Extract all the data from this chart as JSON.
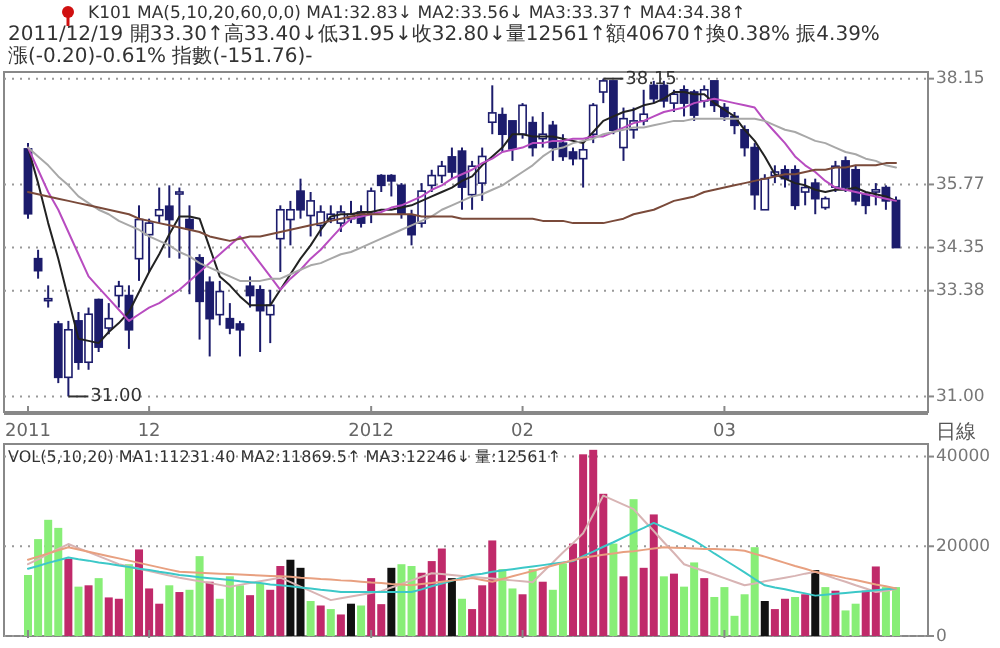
{
  "chart_data": [
    {
      "type": "candlestick",
      "title": "K101 MA(5,10,20,60,0,0) MA1:32.83↓ MA2:33.56↓ MA3:33.37↑ MA4:34.38↑",
      "subtitle": "2011/12/19 開33.30↑高33.40↓低31.95↓收32.80↓量12561↑額40670↑換0.38% 振4.39% 漲(-0.20)-0.61% 指數(-151.76)-",
      "annotations": [
        {
          "text": "38.15",
          "y": 38.15
        },
        "31.00",
        "日線"
      ],
      "categories": [
        "2011",
        null,
        null,
        null,
        null,
        null,
        null,
        null,
        null,
        null,
        null,
        null,
        "12",
        null,
        null,
        null,
        null,
        null,
        null,
        null,
        null,
        null,
        null,
        null,
        null,
        null,
        null,
        null,
        null,
        null,
        null,
        null,
        null,
        null,
        "2012",
        null,
        null,
        null,
        null,
        null,
        null,
        null,
        null,
        null,
        null,
        null,
        null,
        null,
        null,
        "02",
        null,
        null,
        null,
        null,
        null,
        null,
        null,
        null,
        null,
        null,
        null,
        null,
        null,
        null,
        null,
        null,
        null,
        null,
        null,
        "03",
        null,
        null,
        null,
        null,
        null,
        null,
        null,
        null,
        null,
        null,
        null,
        null,
        null,
        null,
        null,
        null,
        null
      ],
      "ylim": [
        30.65,
        38.3
      ],
      "yticks": [
        38.15,
        35.77,
        34.35,
        33.38,
        {
          "value": 31,
          "label": "31.00"
        }
      ],
      "grid": "y",
      "color": "#1c1c6c",
      "ohlc": [
        [
          36.57,
          36.7,
          35.0,
          35.11
        ],
        [
          34.1,
          34.3,
          33.65,
          33.83
        ],
        [
          33.2,
          33.5,
          33.0,
          33.2
        ],
        [
          32.63,
          32.7,
          31.3,
          31.43
        ],
        [
          31.43,
          32.7,
          31.0,
          32.5
        ],
        [
          32.7,
          32.9,
          31.6,
          31.77
        ],
        [
          31.77,
          33.0,
          31.6,
          32.85
        ],
        [
          33.18,
          33.2,
          32.0,
          32.11
        ],
        [
          32.54,
          33.1,
          32.4,
          32.75
        ],
        [
          33.27,
          33.6,
          33.0,
          33.48
        ],
        [
          33.27,
          33.5,
          32.07,
          32.5
        ],
        [
          34.1,
          35.3,
          33.6,
          34.98
        ],
        [
          34.64,
          35.0,
          33.8,
          34.9
        ],
        [
          35.07,
          35.7,
          34.9,
          35.2
        ],
        [
          35.28,
          35.75,
          34.12,
          34.98
        ],
        [
          35.6,
          35.7,
          34.1,
          35.6
        ],
        [
          34.98,
          35.3,
          33.3,
          34.77
        ],
        [
          34.12,
          34.2,
          32.28,
          33.14
        ],
        [
          33.57,
          33.7,
          31.9,
          32.75
        ],
        [
          32.84,
          33.6,
          32.6,
          33.36
        ],
        [
          32.75,
          33.1,
          32.4,
          32.54
        ],
        [
          32.63,
          32.7,
          31.9,
          32.5
        ],
        [
          33.48,
          33.7,
          33.0,
          33.27
        ],
        [
          33.4,
          33.5,
          32.0,
          32.93
        ],
        [
          32.84,
          33.4,
          32.2,
          33.05
        ],
        [
          34.55,
          35.3,
          33.8,
          35.2
        ],
        [
          34.98,
          35.4,
          34.4,
          35.2
        ],
        [
          35.62,
          35.9,
          35.0,
          35.2
        ],
        [
          35.07,
          35.6,
          34.6,
          35.4
        ],
        [
          34.85,
          35.3,
          34.6,
          35.15
        ],
        [
          35.0,
          35.3,
          34.9,
          35.1
        ],
        [
          34.9,
          35.3,
          34.7,
          35.15
        ],
        [
          35.0,
          35.4,
          34.9,
          35.1
        ],
        [
          35.15,
          35.3,
          34.8,
          34.9
        ],
        [
          35.12,
          35.7,
          34.9,
          35.62
        ],
        [
          35.97,
          36.0,
          35.6,
          35.75
        ],
        [
          35.97,
          36.0,
          35.5,
          35.85
        ],
        [
          35.75,
          35.8,
          35.0,
          35.12
        ],
        [
          35.07,
          35.2,
          34.4,
          34.64
        ],
        [
          34.9,
          35.8,
          34.8,
          35.62
        ],
        [
          35.75,
          36.1,
          35.6,
          35.97
        ],
        [
          35.97,
          36.3,
          35.8,
          36.18
        ],
        [
          36.39,
          36.6,
          35.9,
          36.05
        ],
        [
          36.52,
          36.6,
          35.2,
          35.71
        ],
        [
          35.54,
          36.3,
          35.2,
          36.18
        ],
        [
          35.8,
          36.6,
          35.4,
          36.4
        ],
        [
          37.17,
          38.0,
          36.9,
          37.38
        ],
        [
          37.34,
          37.5,
          36.5,
          36.9
        ],
        [
          37.2,
          37.2,
          36.3,
          36.57
        ],
        [
          36.9,
          37.6,
          36.8,
          37.55
        ],
        [
          37.16,
          37.3,
          36.4,
          36.6
        ],
        [
          36.8,
          37.4,
          36.6,
          36.9
        ],
        [
          37.1,
          37.2,
          36.3,
          36.6
        ],
        [
          36.7,
          36.9,
          36.3,
          36.4
        ],
        [
          36.5,
          36.6,
          36.2,
          36.35
        ],
        [
          36.35,
          36.7,
          35.7,
          36.55
        ],
        [
          36.9,
          37.6,
          36.7,
          37.55
        ],
        [
          37.85,
          38.15,
          37.6,
          38.1
        ],
        [
          38.1,
          38.1,
          36.9,
          36.99
        ],
        [
          36.6,
          37.5,
          36.3,
          37.25
        ],
        [
          37.0,
          37.5,
          36.8,
          37.2
        ],
        [
          37.2,
          37.9,
          37.1,
          37.35
        ],
        [
          38.0,
          38.1,
          37.6,
          37.7
        ],
        [
          38.0,
          38.1,
          37.5,
          37.65
        ],
        [
          37.6,
          37.9,
          37.4,
          37.8
        ],
        [
          37.9,
          38.0,
          37.3,
          37.6
        ],
        [
          37.85,
          37.9,
          37.2,
          37.33
        ],
        [
          37.65,
          38.0,
          37.5,
          37.9
        ],
        [
          38.1,
          38.1,
          37.4,
          37.55
        ],
        [
          37.5,
          37.6,
          37.2,
          37.3
        ],
        [
          37.3,
          37.4,
          36.9,
          37.1
        ],
        [
          37.0,
          37.1,
          36.4,
          36.6
        ],
        [
          36.6,
          36.7,
          35.2,
          35.54
        ],
        [
          35.2,
          36.0,
          35.2,
          35.9
        ],
        [
          35.97,
          36.2,
          35.8,
          36.05
        ],
        [
          36.1,
          36.2,
          35.7,
          35.9
        ],
        [
          36.1,
          36.2,
          35.2,
          35.3
        ],
        [
          35.6,
          35.9,
          35.3,
          35.7
        ],
        [
          35.8,
          35.9,
          35.1,
          35.45
        ],
        [
          35.25,
          35.5,
          35.2,
          35.45
        ],
        [
          35.71,
          36.3,
          35.6,
          36.18
        ],
        [
          36.3,
          36.4,
          35.6,
          35.71
        ],
        [
          36.1,
          36.2,
          35.3,
          35.4
        ],
        [
          35.55,
          35.6,
          35.1,
          35.3
        ],
        [
          35.6,
          35.8,
          35.3,
          35.65
        ],
        [
          35.7,
          35.75,
          35.2,
          35.4
        ],
        [
          35.41,
          35.5,
          34.35,
          34.35
        ]
      ],
      "series": [
        {
          "type": "line",
          "color": "#222222",
          "values": [
            36.6,
            35.8,
            34.9,
            34.1,
            33.2,
            32.3,
            32.25,
            32.2,
            32.45,
            32.65,
            32.9,
            33.35,
            33.8,
            34.2,
            34.65,
            35.05,
            35.05,
            35.0,
            34.35,
            33.7,
            33.5,
            33.25,
            33.05,
            33.05,
            33.05,
            33.4,
            33.75,
            34.1,
            34.4,
            34.75,
            35.05,
            35.1,
            35.1,
            35.15,
            35.15,
            35.2,
            35.2,
            35.25,
            35.3,
            35.4,
            35.5,
            35.6,
            35.7,
            35.85,
            35.95,
            36.2,
            36.4,
            36.6,
            36.9,
            36.9,
            36.85,
            36.85,
            36.85,
            36.8,
            36.75,
            36.7,
            36.95,
            37.2,
            37.3,
            37.4,
            37.45,
            37.55,
            37.6,
            37.7,
            37.85,
            37.85,
            37.8,
            37.8,
            37.6,
            37.45,
            37.3,
            37.0,
            36.75,
            36.4,
            36.0,
            35.9,
            35.8,
            35.75,
            35.65,
            35.6,
            35.65,
            35.65,
            35.7,
            35.6,
            35.55,
            35.5,
            35.4
          ]
        },
        {
          "type": "line",
          "color": "#b84cc0",
          "values": [
            36.6,
            36.1,
            35.6,
            35.2,
            34.7,
            34.2,
            33.7,
            33.45,
            33.2,
            32.95,
            32.7,
            32.85,
            33.0,
            33.1,
            33.25,
            33.4,
            33.6,
            33.8,
            34.0,
            34.2,
            34.4,
            34.6,
            34.3,
            34.0,
            33.7,
            33.4,
            33.65,
            33.85,
            34.1,
            34.3,
            34.55,
            34.8,
            35.0,
            35.05,
            35.1,
            35.15,
            35.25,
            35.3,
            35.4,
            35.5,
            35.65,
            35.75,
            35.9,
            36.0,
            36.1,
            36.25,
            36.35,
            36.5,
            36.55,
            36.6,
            36.7,
            36.7,
            36.75,
            36.75,
            36.8,
            36.8,
            36.85,
            36.85,
            36.95,
            37.05,
            37.15,
            37.2,
            37.3,
            37.4,
            37.45,
            37.5,
            37.6,
            37.65,
            37.7,
            37.65,
            37.6,
            37.55,
            37.5,
            37.2,
            36.95,
            36.7,
            36.4,
            36.2,
            36.05,
            35.85,
            35.7,
            35.65,
            35.6,
            35.55,
            35.5,
            35.45,
            35.4
          ]
        },
        {
          "type": "line",
          "color": "#a8a8a8",
          "values": [
            36.6,
            36.4,
            36.2,
            35.95,
            35.75,
            35.5,
            35.35,
            35.2,
            35.1,
            34.95,
            34.85,
            34.75,
            34.6,
            34.5,
            34.4,
            34.25,
            34.15,
            34.0,
            33.9,
            33.8,
            33.7,
            33.6,
            33.6,
            33.6,
            33.65,
            33.65,
            33.75,
            33.85,
            33.95,
            34.0,
            34.1,
            34.2,
            34.25,
            34.35,
            34.45,
            34.55,
            34.65,
            34.75,
            34.85,
            34.95,
            35.05,
            35.2,
            35.3,
            35.4,
            35.5,
            35.55,
            35.65,
            35.75,
            35.9,
            36.05,
            36.2,
            36.4,
            36.55,
            36.6,
            36.7,
            36.75,
            36.8,
            36.9,
            36.95,
            37.0,
            37.05,
            37.05,
            37.1,
            37.15,
            37.2,
            37.2,
            37.25,
            37.25,
            37.25,
            37.25,
            37.25,
            37.25,
            37.25,
            37.2,
            37.1,
            37.0,
            36.95,
            36.85,
            36.75,
            36.7,
            36.6,
            36.5,
            36.45,
            36.35,
            36.3,
            36.2,
            36.15
          ]
        },
        {
          "type": "line",
          "color": "#7a4a3a",
          "values": [
            35.6,
            35.55,
            35.5,
            35.45,
            35.4,
            35.35,
            35.3,
            35.25,
            35.2,
            35.15,
            35.1,
            35.0,
            34.95,
            34.9,
            34.85,
            34.8,
            34.75,
            34.7,
            34.6,
            34.55,
            34.5,
            34.55,
            34.6,
            34.6,
            34.65,
            34.7,
            34.75,
            34.8,
            34.85,
            34.9,
            34.95,
            35.0,
            35.05,
            35.1,
            35.1,
            35.1,
            35.1,
            35.1,
            35.1,
            35.05,
            35.05,
            35.05,
            35.05,
            35.0,
            35.0,
            35.0,
            35.0,
            35.0,
            35.0,
            35.0,
            35.0,
            34.95,
            34.95,
            34.95,
            34.9,
            34.9,
            34.9,
            34.9,
            34.95,
            35.0,
            35.1,
            35.15,
            35.2,
            35.3,
            35.4,
            35.45,
            35.5,
            35.6,
            35.65,
            35.7,
            35.75,
            35.8,
            35.85,
            35.9,
            35.95,
            36.0,
            36.0,
            36.05,
            36.1,
            36.1,
            36.15,
            36.15,
            36.2,
            36.2,
            36.2,
            36.25,
            36.25
          ]
        }
      ]
    },
    {
      "type": "bar",
      "title": "VOL(5,10,20) MA1:11231.40 MA2:11869.5↑ MA3:12246↓ 量:12561↑",
      "tick_labels": "y",
      "categories": [
        "2011",
        null,
        null,
        null,
        null,
        null,
        null,
        null,
        null,
        null,
        null,
        null,
        "12",
        null,
        null,
        null,
        null,
        null,
        null,
        null,
        null,
        null,
        null,
        null,
        null,
        null,
        null,
        null,
        null,
        null,
        null,
        null,
        null,
        null,
        "2012",
        null,
        null,
        null,
        null,
        null,
        null,
        null,
        null,
        null,
        null,
        null,
        null,
        null,
        null,
        "02",
        null,
        null,
        null,
        null,
        null,
        null,
        null,
        null,
        null,
        null,
        null,
        null,
        null,
        null,
        null,
        null,
        null,
        null,
        null,
        "03",
        null,
        null,
        null,
        null,
        null,
        null,
        null,
        null,
        null,
        null,
        null,
        null,
        null,
        null,
        null,
        null,
        null
      ],
      "ylim": [
        0,
        42800
      ],
      "yticks": [
        0,
        20000,
        40000
      ],
      "grid": "y",
      "series": [
        {
          "type": "bar",
          "values": [
            13600,
            21600,
            25900,
            24100,
            17200,
            11000,
            11300,
            12900,
            8600,
            8300,
            16000,
            19300,
            10600,
            7200,
            11300,
            9800,
            10300,
            17800,
            12100,
            8300,
            13300,
            11300,
            9100,
            11800,
            10300,
            15600,
            17000,
            15200,
            7800,
            6800,
            6000,
            4800,
            7200,
            6800,
            12900,
            7100,
            15200,
            16000,
            15600,
            14100,
            16700,
            19500,
            12900,
            8300,
            6000,
            11300,
            21300,
            14900,
            10600,
            9300,
            14900,
            12100,
            10300,
            16200,
            20600,
            40500,
            41500,
            31700,
            20600,
            13300,
            30500,
            15200,
            27100,
            13300,
            13900,
            11000,
            16400,
            12900,
            8700,
            10900,
            4500,
            9300,
            19800,
            7800,
            6000,
            8300,
            8700,
            9300,
            14700,
            10900,
            10100,
            5700,
            7200,
            10100,
            15500,
            10900,
            10900
          ],
          "colors": [
            "#88ee77",
            "#88ee77",
            "#88ee77",
            "#88ee77",
            "#c02a6a",
            "#88ee77",
            "#c02a6a",
            "#88ee77",
            "#c02a6a",
            "#c02a6a",
            "#88ee77",
            "#c02a6a",
            "#c02a6a",
            "#c02a6a",
            "#88ee77",
            "#c02a6a",
            "#88ee77",
            "#88ee77",
            "#c02a6a",
            "#88ee77",
            "#88ee77",
            "#88ee77",
            "#c02a6a",
            "#88ee77",
            "#c02a6a",
            "#c02a6a",
            "#111111",
            "#111111",
            "#88ee77",
            "#c02a6a",
            "#88ee77",
            "#c02a6a",
            "#111111",
            "#88ee77",
            "#c02a6a",
            "#c02a6a",
            "#111111",
            "#88ee77",
            "#88ee77",
            "#c02a6a",
            "#c02a6a",
            "#c02a6a",
            "#111111",
            "#88ee77",
            "#c02a6a",
            "#c02a6a",
            "#c02a6a",
            "#88ee77",
            "#88ee77",
            "#c02a6a",
            "#88ee77",
            "#c02a6a",
            "#88ee77",
            "#88ee77",
            "#c02a6a",
            "#c02a6a",
            "#c02a6a",
            "#c02a6a",
            "#88ee77",
            "#c02a6a",
            "#88ee77",
            "#c02a6a",
            "#c02a6a",
            "#88ee77",
            "#c02a6a",
            "#88ee77",
            "#88ee77",
            "#c02a6a",
            "#88ee77",
            "#88ee77",
            "#88ee77",
            "#88ee77",
            "#88ee77",
            "#111111",
            "#c02a6a",
            "#c02a6a",
            "#88ee77",
            "#c02a6a",
            "#111111",
            "#88ee77",
            "#c02a6a",
            "#88ee77",
            "#88ee77",
            "#c02a6a",
            "#c02a6a",
            "#88ee77",
            "#88ee77"
          ]
        },
        {
          "type": "line",
          "color": "#d8b4b4",
          "values": [
            16000,
            17100,
            18300,
            19400,
            20500,
            19600,
            18700,
            17800,
            16900,
            16000,
            15500,
            15000,
            14500,
            14000,
            13500,
            13000,
            12600,
            12200,
            11800,
            11400,
            11000,
            11400,
            11800,
            12200,
            12600,
            13000,
            12000,
            11000,
            10000,
            9000,
            8000,
            8400,
            8800,
            9200,
            9600,
            10000,
            10800,
            11600,
            12400,
            13200,
            14000,
            13800,
            13600,
            13400,
            13200,
            13000,
            12800,
            12600,
            12400,
            12200,
            12000,
            14200,
            16400,
            18600,
            20700,
            22900,
            27100,
            31300,
            30300,
            29300,
            28300,
            25800,
            23400,
            20900,
            18500,
            16000,
            15200,
            14500,
            13700,
            12900,
            12100,
            11300,
            11700,
            12200,
            12600,
            13000,
            13400,
            13900,
            14300,
            13600,
            12800,
            12100,
            11300,
            10600,
            9800,
            10100,
            10500
          ]
        },
        {
          "type": "line",
          "color": "#3cc8c8",
          "values": [
            15000,
            15600,
            16300,
            16900,
            17500,
            17100,
            16800,
            16400,
            16100,
            15700,
            15400,
            15000,
            14700,
            14300,
            14000,
            13600,
            13400,
            13100,
            12900,
            12700,
            12500,
            12200,
            12000,
            11800,
            11500,
            11300,
            11100,
            10800,
            10600,
            10300,
            10100,
            9800,
            9800,
            9800,
            9800,
            9800,
            9800,
            9800,
            9800,
            10400,
            11100,
            11700,
            12300,
            13000,
            13600,
            13900,
            14300,
            14600,
            14900,
            15200,
            15500,
            15800,
            16100,
            16400,
            16700,
            17800,
            18800,
            19900,
            20900,
            22000,
            23100,
            24100,
            25200,
            24200,
            23300,
            22300,
            21300,
            19900,
            18400,
            17000,
            15600,
            14200,
            12700,
            11300,
            10800,
            10400,
            9900,
            9500,
            9000,
            9200,
            9400,
            9600,
            9800,
            10000,
            10200,
            10400,
            10600
          ]
        },
        {
          "type": "line",
          "color": "#e8a080",
          "values": [
            17000,
            17700,
            18400,
            19100,
            19800,
            19300,
            18800,
            18300,
            17800,
            17300,
            16800,
            16300,
            15800,
            15300,
            14800,
            14300,
            14200,
            14100,
            14000,
            13900,
            13800,
            13700,
            13600,
            13500,
            13400,
            13300,
            13200,
            13000,
            12900,
            12700,
            12600,
            12400,
            12300,
            12100,
            11900,
            11800,
            11600,
            11500,
            11300,
            11600,
            11800,
            12100,
            12400,
            12600,
            12900,
            12500,
            12100,
            12700,
            13300,
            13900,
            14500,
            15100,
            15700,
            16300,
            16900,
            17500,
            17800,
            18100,
            18400,
            18700,
            18900,
            19200,
            19500,
            19800,
            19700,
            19600,
            19500,
            19400,
            19400,
            19300,
            19200,
            19000,
            18300,
            17700,
            17000,
            16300,
            15600,
            15000,
            14300,
            13800,
            13400,
            12900,
            12500,
            12000,
            11500,
            11100,
            10600
          ]
        }
      ]
    }
  ]
}
